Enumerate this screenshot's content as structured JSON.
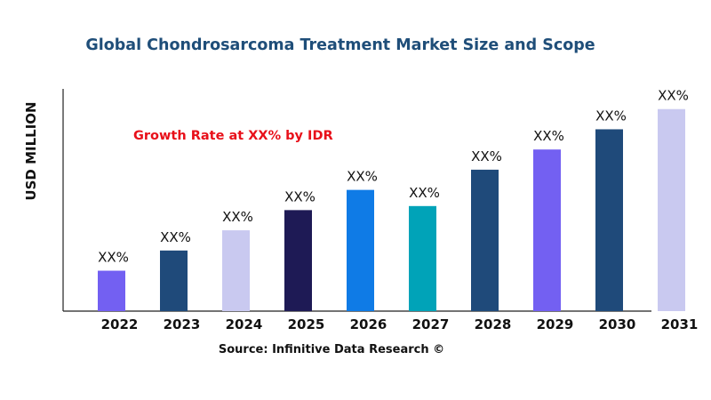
{
  "chart_data": {
    "type": "bar",
    "title": "Global Chondrosarcoma Treatment Market Size and Scope",
    "xlabel": "",
    "ylabel": "USD MILLION",
    "annotation": "Growth Rate at XX% by IDR",
    "source": "Source: Infinitive Data Research ©",
    "categories": [
      "2022",
      "2023",
      "2024",
      "2025",
      "2026",
      "2027",
      "2028",
      "2029",
      "2030",
      "2031"
    ],
    "values": [
      20,
      30,
      40,
      50,
      60,
      52,
      70,
      80,
      90,
      100
    ],
    "data_labels": [
      "XX%",
      "XX%",
      "XX%",
      "XX%",
      "XX%",
      "XX%",
      "XX%",
      "XX%",
      "XX%",
      "XX%"
    ],
    "colors": [
      "#7360f2",
      "#1f4a7a",
      "#c9c9f0",
      "#1e1a55",
      "#0f7be6",
      "#00a3b8",
      "#1f4a7a",
      "#7360f2",
      "#1f4a7a",
      "#c9c9f0"
    ],
    "ylim": [
      0,
      110
    ],
    "grid": false,
    "legend": "none"
  }
}
